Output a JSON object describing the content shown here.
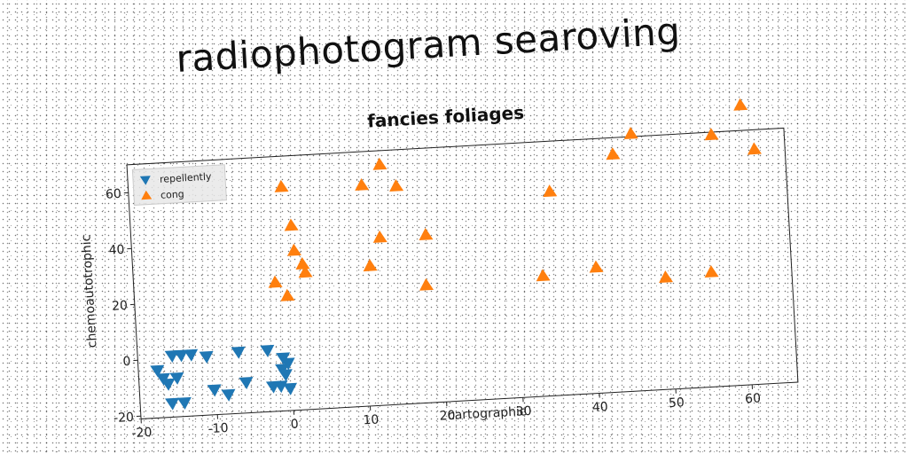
{
  "page_title": "radiophotogram searoving",
  "colors": {
    "repellently": "#1f77b4",
    "cong": "#ff7f0e"
  },
  "chart_data": {
    "type": "scatter",
    "title": "fancies foliages",
    "xlabel": "cartographic",
    "ylabel": "chemoautotrophic",
    "xlim": [
      -20,
      66
    ],
    "ylim": [
      -21,
      70
    ],
    "xticks": [
      -20,
      -10,
      0,
      10,
      20,
      30,
      40,
      50,
      60
    ],
    "yticks": [
      -20,
      0,
      20,
      40,
      60
    ],
    "grid": false,
    "legend_position": "top-left",
    "series": [
      {
        "name": "repellently",
        "marker": "triangle-down",
        "color": "#1f77b4",
        "points": [
          [
            -17.5,
            -4
          ],
          [
            -16.8,
            -7
          ],
          [
            -16.2,
            -9
          ],
          [
            -15.5,
            1
          ],
          [
            -15,
            -7
          ],
          [
            -14.3,
            1
          ],
          [
            -13,
            1
          ],
          [
            -15.8,
            -16
          ],
          [
            -14.2,
            -16
          ],
          [
            -11,
            0
          ],
          [
            -10.2,
            -12
          ],
          [
            -8.4,
            -14
          ],
          [
            -6.8,
            1
          ],
          [
            -6,
            -10
          ],
          [
            -3,
            1
          ],
          [
            -2.5,
            -12
          ],
          [
            -1.5,
            -12
          ],
          [
            -1,
            -2
          ],
          [
            -1.2,
            -6
          ],
          [
            -0.8,
            -8
          ],
          [
            -0.3,
            -13
          ],
          [
            -0.4,
            -4
          ]
        ]
      },
      {
        "name": "cong",
        "marker": "triangle-up",
        "color": "#ff7f0e",
        "points": [
          [
            -1.5,
            25
          ],
          [
            0,
            20
          ],
          [
            0,
            59
          ],
          [
            1,
            45
          ],
          [
            1.2,
            36
          ],
          [
            2.2,
            31
          ],
          [
            2.5,
            28
          ],
          [
            10.5,
            58
          ],
          [
            11,
            29
          ],
          [
            12.5,
            39
          ],
          [
            13,
            65
          ],
          [
            15,
            57
          ],
          [
            18.5,
            39
          ],
          [
            18.2,
            21
          ],
          [
            35,
            52
          ],
          [
            33.5,
            22
          ],
          [
            40.5,
            24
          ],
          [
            43.5,
            64
          ],
          [
            46,
            71
          ],
          [
            49.5,
            19
          ],
          [
            55.5,
            20
          ],
          [
            56.5,
            69
          ],
          [
            60.5,
            79
          ],
          [
            62,
            63
          ]
        ]
      }
    ]
  }
}
